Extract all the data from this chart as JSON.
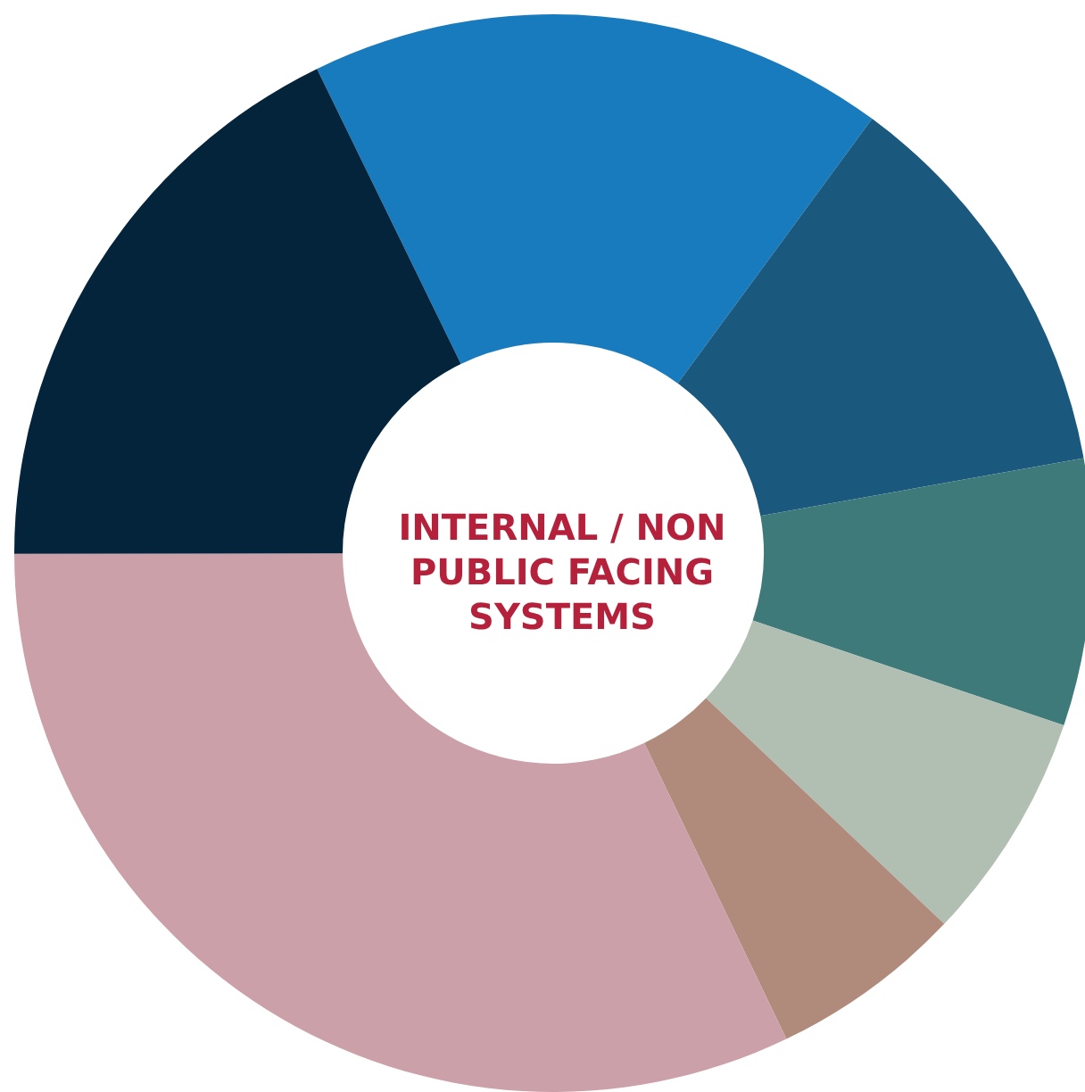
{
  "chart_data": {
    "type": "donut",
    "title": "INTERNAL / NON PUBLIC FACING SYSTEMS",
    "categories": [
      null,
      null,
      null,
      null,
      null,
      null,
      null
    ],
    "values": [
      17.3,
      12.1,
      8.0,
      6.9,
      5.8,
      32.1,
      17.8
    ],
    "colors": [
      "#177bbd",
      "#1a587e",
      "#3f7a7a",
      "#b1bfb2",
      "#b08a7a",
      "#cca0a8",
      "#04243c"
    ]
  }
}
